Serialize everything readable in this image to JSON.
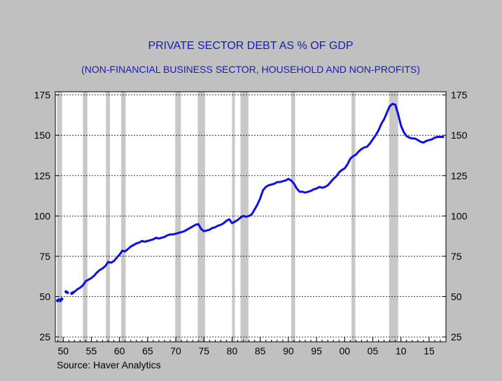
{
  "chart_data": {
    "type": "line",
    "title": "PRIVATE SECTOR DEBT AS % OF GDP",
    "subtitle": "(NON-FINANCIAL BUSINESS SECTOR, HOUSEHOLD AND NON-PROFITS)",
    "source": "Source: Haver Analytics",
    "xlabel": "",
    "ylabel": "",
    "xlim": [
      1948.6,
      2018.0
    ],
    "ylim": [
      22,
      177
    ],
    "grid": true,
    "grid_style": "dashed",
    "colors": {
      "series": "#1010e0",
      "title": "#1a1ab4",
      "recession": "#c8c8c8",
      "background": "#ffffff",
      "outer": "#c0c0c0"
    },
    "x_ticks": [
      {
        "value": 1950,
        "label": "50"
      },
      {
        "value": 1955,
        "label": "55"
      },
      {
        "value": 1960,
        "label": "60"
      },
      {
        "value": 1965,
        "label": "65"
      },
      {
        "value": 1970,
        "label": "70"
      },
      {
        "value": 1975,
        "label": "75"
      },
      {
        "value": 1980,
        "label": "80"
      },
      {
        "value": 1985,
        "label": "85"
      },
      {
        "value": 1990,
        "label": "90"
      },
      {
        "value": 1995,
        "label": "95"
      },
      {
        "value": 2000,
        "label": "00"
      },
      {
        "value": 2005,
        "label": "05"
      },
      {
        "value": 2010,
        "label": "10"
      },
      {
        "value": 2015,
        "label": "15"
      }
    ],
    "y_ticks": [
      {
        "value": 25,
        "label": "25"
      },
      {
        "value": 50,
        "label": "50"
      },
      {
        "value": 75,
        "label": "75"
      },
      {
        "value": 100,
        "label": "100"
      },
      {
        "value": 125,
        "label": "125"
      },
      {
        "value": 150,
        "label": "150"
      },
      {
        "value": 175,
        "label": "175"
      }
    ],
    "recessions": [
      [
        1948.9,
        1949.8
      ],
      [
        1953.5,
        1954.3
      ],
      [
        1957.6,
        1958.3
      ],
      [
        1960.3,
        1961.1
      ],
      [
        1969.9,
        1970.9
      ],
      [
        1973.9,
        1975.2
      ],
      [
        1980.0,
        1980.5
      ],
      [
        1981.5,
        1982.9
      ],
      [
        1990.5,
        1991.2
      ],
      [
        2001.2,
        2001.9
      ],
      [
        2007.9,
        2009.5
      ]
    ],
    "series": [
      {
        "dotted": [
          [
            1949.0,
            47.5
          ],
          [
            1949.25,
            48.0
          ],
          [
            1949.5,
            47.5
          ],
          [
            1949.75,
            48.5
          ],
          [
            1950.5,
            53.0
          ],
          [
            1950.75,
            52.5
          ],
          [
            1951.5,
            52.0
          ],
          [
            1951.75,
            52.5
          ]
        ],
        "x": [
          1952.0,
          1952.5,
          1953.0,
          1953.5,
          1954.0,
          1954.5,
          1955.0,
          1955.5,
          1956.0,
          1956.5,
          1957.0,
          1957.5,
          1958.0,
          1958.5,
          1959.0,
          1959.5,
          1960.0,
          1960.5,
          1961.0,
          1961.5,
          1962.0,
          1962.5,
          1963.0,
          1963.5,
          1964.0,
          1964.5,
          1965.0,
          1965.5,
          1966.0,
          1966.5,
          1967.0,
          1967.5,
          1968.0,
          1968.5,
          1969.0,
          1969.5,
          1970.0,
          1970.5,
          1971.0,
          1971.5,
          1972.0,
          1972.5,
          1973.0,
          1973.5,
          1974.0,
          1974.5,
          1975.0,
          1975.5,
          1976.0,
          1976.5,
          1977.0,
          1977.5,
          1978.0,
          1978.5,
          1979.0,
          1979.5,
          1980.0,
          1980.5,
          1981.0,
          1981.5,
          1982.0,
          1982.5,
          1983.0,
          1983.5,
          1984.0,
          1984.5,
          1985.0,
          1985.5,
          1986.0,
          1986.5,
          1987.0,
          1987.5,
          1988.0,
          1988.5,
          1989.0,
          1989.5,
          1990.0,
          1990.5,
          1991.0,
          1991.5,
          1992.0,
          1992.5,
          1993.0,
          1993.5,
          1994.0,
          1994.5,
          1995.0,
          1995.5,
          1996.0,
          1996.5,
          1997.0,
          1997.5,
          1998.0,
          1998.5,
          1999.0,
          1999.5,
          2000.0,
          2000.5,
          2001.0,
          2001.5,
          2002.0,
          2002.5,
          2003.0,
          2003.5,
          2004.0,
          2004.5,
          2005.0,
          2005.5,
          2006.0,
          2006.5,
          2007.0,
          2007.5,
          2008.0,
          2008.5,
          2009.0,
          2009.5,
          2010.0,
          2010.5,
          2011.0,
          2011.5,
          2012.0,
          2012.5,
          2013.0,
          2013.5,
          2014.0,
          2014.5,
          2015.0,
          2015.5,
          2016.0,
          2016.5,
          2017.0,
          2017.5
        ],
        "values": [
          53.0,
          54.5,
          55.5,
          57.0,
          59.5,
          60.5,
          61.5,
          63.0,
          65.0,
          66.5,
          67.5,
          69.0,
          71.5,
          71.0,
          72.0,
          74.0,
          76.0,
          78.5,
          78.0,
          79.5,
          81.0,
          82.0,
          83.0,
          83.5,
          84.5,
          84.0,
          84.5,
          85.0,
          85.5,
          86.5,
          86.0,
          86.5,
          87.0,
          88.0,
          88.5,
          88.5,
          89.0,
          89.5,
          90.0,
          90.5,
          91.5,
          92.5,
          93.5,
          94.5,
          95.0,
          92.0,
          90.5,
          91.0,
          91.5,
          92.5,
          93.0,
          94.0,
          94.5,
          95.5,
          97.0,
          98.0,
          95.5,
          96.5,
          97.5,
          99.0,
          100.0,
          99.5,
          100.0,
          101.0,
          104.0,
          107.0,
          111.0,
          116.0,
          118.0,
          119.0,
          119.5,
          120.0,
          121.0,
          121.0,
          121.5,
          122.0,
          123.0,
          122.0,
          120.0,
          117.0,
          115.0,
          115.0,
          114.5,
          115.0,
          115.5,
          116.5,
          117.0,
          118.0,
          117.5,
          118.0,
          119.0,
          121.0,
          123.0,
          124.5,
          127.0,
          128.5,
          129.5,
          132.0,
          135.5,
          137.0,
          138.0,
          140.0,
          141.5,
          142.5,
          143.0,
          145.0,
          147.5,
          150.0,
          153.0,
          157.0,
          160.0,
          164.0,
          168.0,
          169.5,
          169.0,
          163.0,
          156.0,
          152.0,
          149.5,
          148.5,
          148.0,
          148.0,
          147.0,
          146.0,
          145.5,
          146.5,
          147.0,
          147.5,
          148.5,
          149.0,
          149.0,
          149.0
        ]
      }
    ]
  }
}
